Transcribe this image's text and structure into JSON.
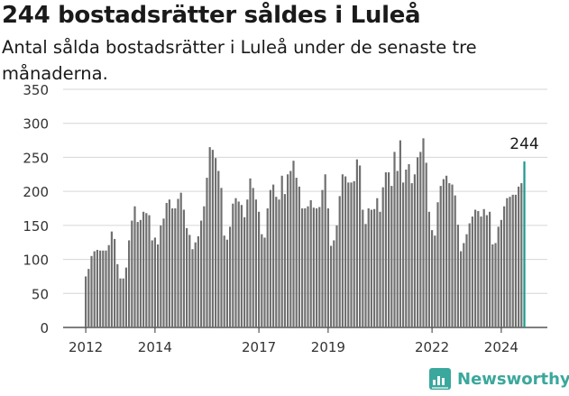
{
  "title": "244 bostadsrätter såldes i Luleå",
  "subtitle": "Antal sålda bostadsrätter i Luleå under de senaste tre månaderna.",
  "brand": {
    "name": "Newsworthy",
    "icon": "newsworthy-logo-icon"
  },
  "colors": {
    "bar": "#707070",
    "highlight": "#1a9a8e",
    "grid": "#d6d6d6",
    "brand": "#3aa89c"
  },
  "chart_data": {
    "type": "bar",
    "ylim": [
      0,
      350
    ],
    "yticks": [
      0,
      50,
      100,
      150,
      200,
      250,
      300,
      350
    ],
    "xticks": [
      {
        "label": "2012",
        "index": 0
      },
      {
        "label": "2014",
        "index": 24
      },
      {
        "label": "2017",
        "index": 60
      },
      {
        "label": "2019",
        "index": 84
      },
      {
        "label": "2022",
        "index": 120
      },
      {
        "label": "2024",
        "index": 144
      }
    ],
    "values": [
      75,
      86,
      105,
      112,
      114,
      113,
      113,
      113,
      121,
      141,
      130,
      93,
      72,
      72,
      88,
      128,
      157,
      178,
      155,
      158,
      170,
      168,
      165,
      128,
      132,
      122,
      150,
      160,
      183,
      188,
      175,
      175,
      189,
      198,
      173,
      146,
      136,
      115,
      125,
      134,
      157,
      178,
      220,
      265,
      261,
      249,
      230,
      205,
      135,
      129,
      148,
      182,
      190,
      185,
      180,
      162,
      188,
      219,
      205,
      188,
      170,
      137,
      132,
      175,
      202,
      210,
      192,
      188,
      223,
      196,
      225,
      230,
      245,
      220,
      207,
      175,
      175,
      178,
      187,
      176,
      175,
      177,
      202,
      225,
      175,
      120,
      128,
      150,
      193,
      225,
      222,
      213,
      213,
      215,
      247,
      238,
      173,
      152,
      175,
      173,
      174,
      190,
      170,
      206,
      228,
      228,
      208,
      258,
      230,
      275,
      213,
      232,
      240,
      212,
      225,
      250,
      258,
      278,
      242,
      170,
      143,
      135,
      184,
      208,
      218,
      223,
      212,
      210,
      194,
      151,
      112,
      124,
      137,
      153,
      163,
      173,
      171,
      163,
      174,
      165,
      170,
      122,
      124,
      148,
      158,
      178,
      190,
      192,
      195,
      195,
      207,
      212,
      244
    ],
    "highlight_index": 152,
    "highlight_label": "244"
  }
}
